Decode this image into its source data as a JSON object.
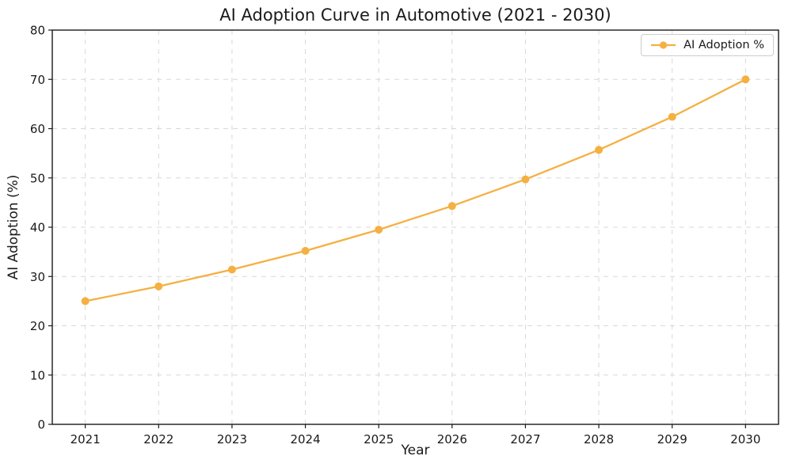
{
  "chart_data": {
    "type": "line",
    "title": "AI Adoption Curve in Automotive (2021 - 2030)",
    "xlabel": "Year",
    "ylabel": "AI Adoption (%)",
    "categories": [
      "2021",
      "2022",
      "2023",
      "2024",
      "2025",
      "2026",
      "2027",
      "2028",
      "2029",
      "2030"
    ],
    "series": [
      {
        "name": "AI Adoption %",
        "color": "#F5B041",
        "values": [
          25.0,
          28.0,
          31.4,
          35.2,
          39.5,
          44.3,
          49.7,
          55.7,
          62.4,
          70.0
        ]
      }
    ],
    "ylim": [
      0,
      80
    ],
    "yticks": [
      0,
      10,
      20,
      30,
      40,
      50,
      60,
      70,
      80
    ],
    "grid": true,
    "grid_style": "dashed",
    "grid_color": "#d8d8d8",
    "text_color": "#1a1a1a",
    "background_color": "#ffffff",
    "legend_position": "upper right",
    "marker": "circle"
  }
}
